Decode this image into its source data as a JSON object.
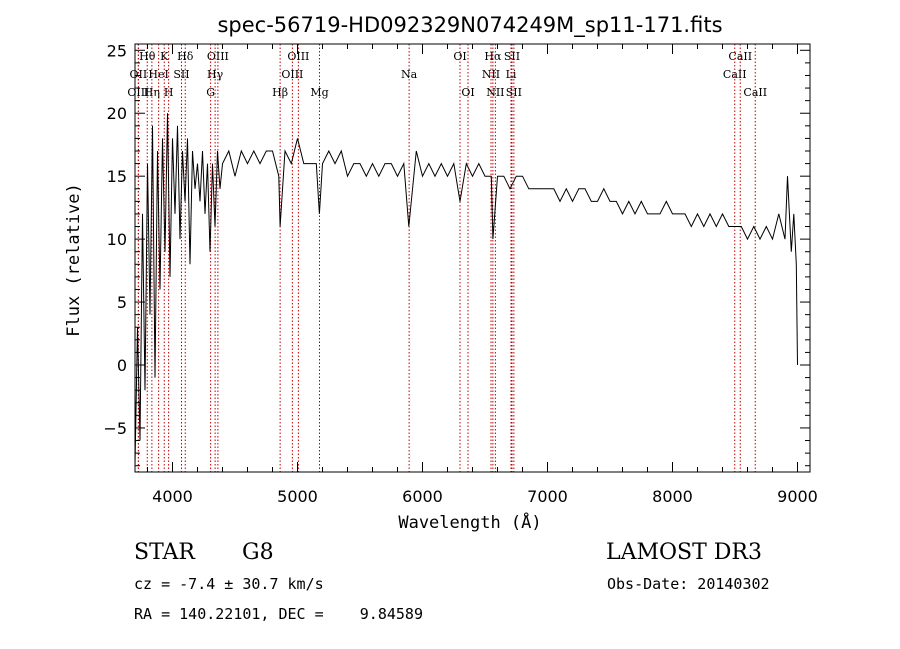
{
  "chart_data": {
    "type": "line",
    "title": "spec-56719-HD092329N074249M_sp11-171.fits",
    "xlabel": "Wavelength (Å)",
    "ylabel": "Flux (relative)",
    "xlim": [
      3700,
      9100
    ],
    "ylim": [
      -8.5,
      25.5
    ],
    "xticks": [
      4000,
      5000,
      6000,
      7000,
      8000,
      9000
    ],
    "yticks": [
      -5,
      0,
      5,
      10,
      15,
      20,
      25
    ],
    "series": [
      {
        "name": "flux",
        "x": [
          3700,
          3720,
          3740,
          3760,
          3780,
          3800,
          3820,
          3840,
          3860,
          3880,
          3900,
          3920,
          3940,
          3960,
          3980,
          4000,
          4020,
          4040,
          4060,
          4080,
          4100,
          4120,
          4140,
          4160,
          4180,
          4200,
          4220,
          4240,
          4260,
          4280,
          4300,
          4320,
          4340,
          4360,
          4380,
          4400,
          4450,
          4500,
          4550,
          4600,
          4650,
          4700,
          4750,
          4800,
          4850,
          4861,
          4900,
          4950,
          5000,
          5050,
          5100,
          5150,
          5175,
          5200,
          5250,
          5300,
          5350,
          5400,
          5450,
          5500,
          5550,
          5600,
          5650,
          5700,
          5750,
          5800,
          5850,
          5890,
          5950,
          6000,
          6050,
          6100,
          6150,
          6200,
          6250,
          6300,
          6350,
          6400,
          6450,
          6500,
          6550,
          6563,
          6600,
          6650,
          6700,
          6750,
          6800,
          6850,
          6900,
          6950,
          7000,
          7050,
          7100,
          7150,
          7200,
          7250,
          7300,
          7350,
          7400,
          7450,
          7500,
          7550,
          7600,
          7650,
          7700,
          7750,
          7800,
          7850,
          7900,
          7950,
          8000,
          8050,
          8100,
          8150,
          8200,
          8250,
          8300,
          8350,
          8400,
          8450,
          8500,
          8550,
          8600,
          8650,
          8700,
          8750,
          8800,
          8850,
          8900,
          8920,
          8950,
          8970,
          8990,
          9000
        ],
        "values": [
          -8,
          3,
          -6,
          12,
          -2,
          16,
          4,
          19,
          -1,
          17,
          6,
          18,
          9,
          20,
          7,
          18,
          12,
          19,
          10,
          17,
          13,
          18,
          8,
          17,
          14,
          16,
          13,
          17,
          12,
          16,
          9,
          16,
          11,
          17,
          14,
          16,
          17,
          15,
          17,
          16,
          17,
          16,
          17,
          17,
          15,
          11,
          17,
          16,
          18,
          16,
          16,
          16,
          12,
          16,
          17,
          16,
          17,
          15,
          16,
          16,
          15,
          16,
          15,
          16,
          16,
          15,
          16,
          11,
          17,
          15,
          16,
          15,
          16,
          15,
          16,
          13,
          16,
          15,
          16,
          15,
          15,
          10,
          15,
          15,
          14,
          15,
          15,
          14,
          14,
          14,
          14,
          14,
          13,
          14,
          13,
          14,
          14,
          13,
          13,
          14,
          13,
          13,
          12,
          13,
          12,
          13,
          12,
          12,
          12,
          13,
          12,
          12,
          12,
          11,
          12,
          11,
          12,
          11,
          12,
          11,
          11,
          11,
          10,
          11,
          10,
          11,
          10,
          12,
          10,
          15,
          9,
          12,
          8,
          0
        ]
      }
    ],
    "lines": [
      {
        "label": "Hθ",
        "x": 3798,
        "row": 1
      },
      {
        "label": "OII",
        "x": 3727,
        "row": 2
      },
      {
        "label": "OIII",
        "x": 3727,
        "row": 3
      },
      {
        "label": "K",
        "x": 3934,
        "row": 1
      },
      {
        "label": "HeI",
        "x": 3889,
        "row": 2
      },
      {
        "label": "Hη",
        "x": 3835,
        "row": 3
      },
      {
        "label": "Hδ",
        "x": 4102,
        "row": 1
      },
      {
        "label": "SII",
        "x": 4072,
        "row": 2
      },
      {
        "label": "H",
        "x": 3969,
        "row": 3
      },
      {
        "label": "OIII",
        "x": 4363,
        "row": 1
      },
      {
        "label": "Hγ",
        "x": 4341,
        "row": 2
      },
      {
        "label": "G",
        "x": 4305,
        "row": 3
      },
      {
        "label": "OIII",
        "x": 5007,
        "row": 1
      },
      {
        "label": "OIII",
        "x": 4959,
        "row": 2
      },
      {
        "label": "Hβ",
        "x": 4861,
        "row": 3
      },
      {
        "label": "Mg",
        "x": 5176,
        "row": 3
      },
      {
        "label": "Na",
        "x": 5893,
        "row": 2
      },
      {
        "label": "OI",
        "x": 6300,
        "row": 1
      },
      {
        "label": "OI",
        "x": 6364,
        "row": 3
      },
      {
        "label": "Hα",
        "x": 6563,
        "row": 1
      },
      {
        "label": "SII",
        "x": 6716,
        "row": 1
      },
      {
        "label": "NII",
        "x": 6548,
        "row": 2
      },
      {
        "label": "Li",
        "x": 6708,
        "row": 2
      },
      {
        "label": "NII",
        "x": 6583,
        "row": 3
      },
      {
        "label": "SII",
        "x": 6731,
        "row": 3
      },
      {
        "label": "CaII",
        "x": 8542,
        "row": 1
      },
      {
        "label": "CaII",
        "x": 8498,
        "row": 2
      },
      {
        "label": "CaII",
        "x": 8662,
        "row": 3
      }
    ]
  },
  "info": {
    "class": "STAR",
    "subclass": "G8",
    "survey": "LAMOST DR3",
    "redshift": "cz = -7.4 ± 30.7 km/s",
    "obs_date": "Obs-Date: 20140302",
    "coords": "RA = 140.22101, DEC =    9.84589"
  }
}
